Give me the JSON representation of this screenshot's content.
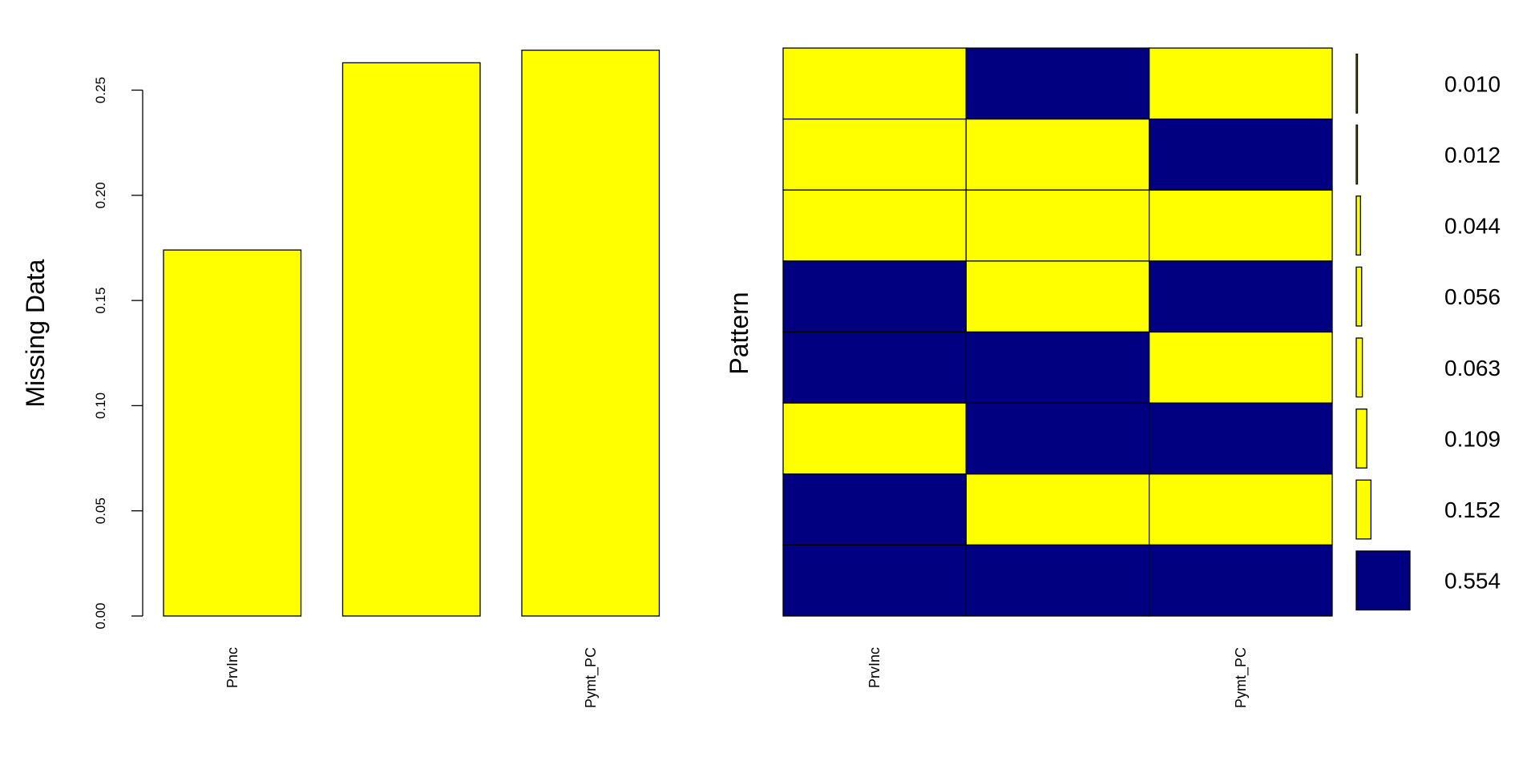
{
  "chart_data": [
    {
      "type": "bar",
      "ylabel": "Missing Data",
      "categories": [
        "PrvInc",
        "",
        "Pymt_PC"
      ],
      "values": [
        0.174,
        0.263,
        0.269
      ],
      "ylim": [
        0,
        0.27
      ],
      "yticks": [
        "0.00",
        "0.05",
        "0.10",
        "0.15",
        "0.20",
        "0.25"
      ],
      "ytick_values": [
        0,
        0.05,
        0.1,
        0.15,
        0.2,
        0.25
      ],
      "bar_color": "#FFFF00"
    },
    {
      "type": "heatmap",
      "ylabel": "Pattern",
      "columns": [
        "PrvInc",
        "",
        "Pymt_PC"
      ],
      "rows": [
        {
          "pattern": [
            1,
            0,
            1
          ],
          "proportion": 0.01,
          "label": "0.010"
        },
        {
          "pattern": [
            1,
            1,
            0
          ],
          "proportion": 0.012,
          "label": "0.012"
        },
        {
          "pattern": [
            1,
            1,
            1
          ],
          "proportion": 0.044,
          "label": "0.044"
        },
        {
          "pattern": [
            0,
            1,
            0
          ],
          "proportion": 0.056,
          "label": "0.056"
        },
        {
          "pattern": [
            0,
            0,
            1
          ],
          "proportion": 0.063,
          "label": "0.063"
        },
        {
          "pattern": [
            1,
            0,
            0
          ],
          "proportion": 0.109,
          "label": "0.109"
        },
        {
          "pattern": [
            0,
            1,
            1
          ],
          "proportion": 0.152,
          "label": "0.152"
        },
        {
          "pattern": [
            0,
            0,
            0
          ],
          "proportion": 0.554,
          "label": "0.554"
        }
      ],
      "missing_color": "#FFFF00",
      "observed_color": "#000080"
    }
  ]
}
